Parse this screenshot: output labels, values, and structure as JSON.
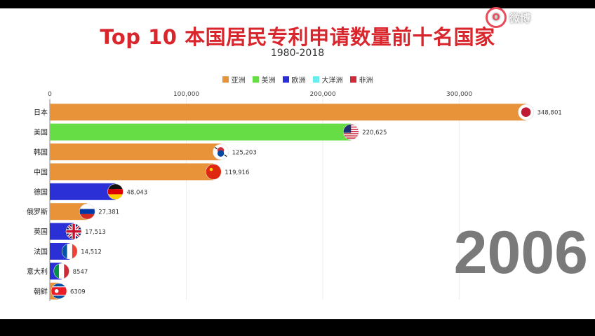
{
  "title": "Top 10 本国居民专利申请数量前十名国家",
  "subtitle": "1980-2018",
  "year": "2006",
  "watermark": {
    "logo_text": "O",
    "text": "微博"
  },
  "legend": [
    {
      "label": "亚洲",
      "color": "#e8923a"
    },
    {
      "label": "美洲",
      "color": "#66dd44"
    },
    {
      "label": "欧洲",
      "color": "#2a2fd6"
    },
    {
      "label": "大洋洲",
      "color": "#66eeee"
    },
    {
      "label": "非洲",
      "color": "#cc2b3a"
    }
  ],
  "chart_data": {
    "type": "bar",
    "orientation": "horizontal",
    "title": "Top 10 本国居民专利申请数量前十名国家",
    "subtitle": "1980-2018",
    "x_ticks": [
      "0",
      "100,000",
      "200,000",
      "300,000"
    ],
    "x_tick_values": [
      0,
      100000,
      200000,
      300000
    ],
    "xlim": [
      0,
      349000
    ],
    "grid": true,
    "legend_position": "top",
    "categories": [
      "日本",
      "美国",
      "韩国",
      "中国",
      "德国",
      "俄罗斯",
      "英国",
      "法国",
      "意大利",
      "朝鲜"
    ],
    "values": [
      348801,
      220625,
      125203,
      119916,
      48043,
      27381,
      17513,
      14512,
      8547,
      6309
    ],
    "value_labels": [
      "348,801",
      "220,625",
      "125,203",
      "119,916",
      "48,043",
      "27,381",
      "17,513",
      "14,512",
      "8547",
      "6309"
    ],
    "regions": [
      "亚洲",
      "美洲",
      "亚洲",
      "亚洲",
      "欧洲",
      "亚洲",
      "欧洲",
      "欧洲",
      "欧洲",
      "亚洲"
    ],
    "flags": [
      "japan-flag",
      "usa-flag",
      "south-korea-flag",
      "china-flag",
      "germany-flag",
      "russia-flag",
      "uk-flag",
      "france-flag",
      "italy-flag",
      "north-korea-flag"
    ]
  }
}
